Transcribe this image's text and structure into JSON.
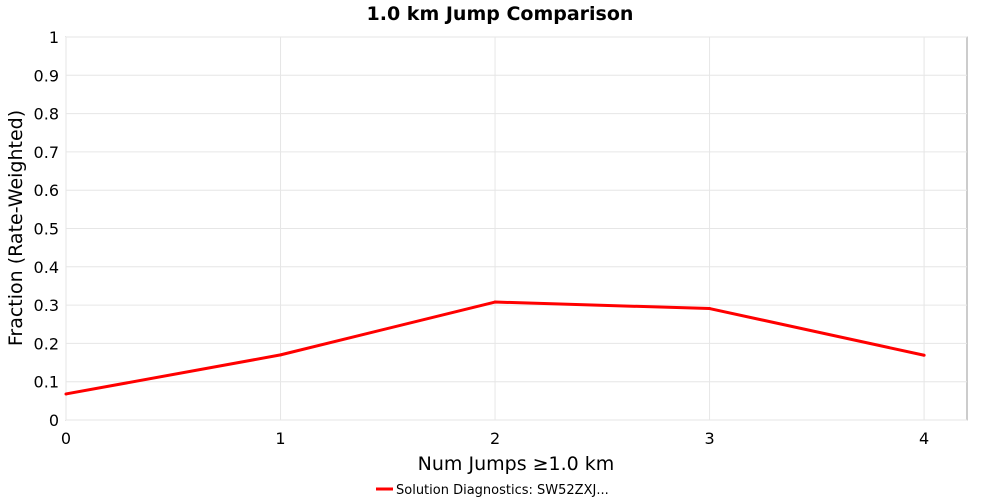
{
  "chart_data": {
    "type": "line",
    "title": "1.0 km Jump Comparison",
    "xlabel": "Num Jumps ≥1.0 km",
    "ylabel": "Fraction (Rate-Weighted)",
    "xlim": [
      0,
      4.2
    ],
    "ylim": [
      0,
      1
    ],
    "x_ticks": [
      0,
      1,
      2,
      3,
      4
    ],
    "y_ticks": [
      0,
      0.1,
      0.2,
      0.3,
      0.4,
      0.5,
      0.6,
      0.7,
      0.8,
      0.9,
      1
    ],
    "y_tick_labels": [
      "0",
      "0.1",
      "0.2",
      "0.3",
      "0.4",
      "0.5",
      "0.6",
      "0.7",
      "0.8",
      "0.9",
      "1"
    ],
    "grid": true,
    "legend_position": "bottom-center",
    "series": [
      {
        "name": "Solution Diagnostics: SW52ZXJ...",
        "color": "#ff0000",
        "x": [
          0,
          1,
          2,
          3,
          4
        ],
        "y": [
          0.068,
          0.17,
          0.308,
          0.291,
          0.169
        ]
      }
    ]
  }
}
